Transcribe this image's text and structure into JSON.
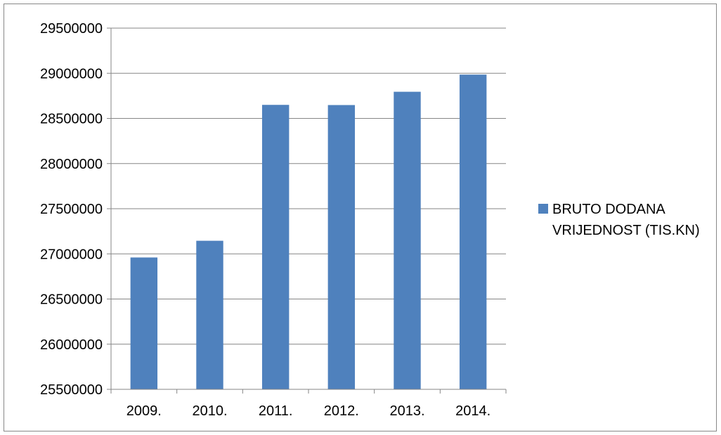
{
  "chart_data": {
    "type": "bar",
    "categories": [
      "2009.",
      "2010.",
      "2011.",
      "2012.",
      "2013.",
      "2014."
    ],
    "series": [
      {
        "name": "BRUTO DODANA VRIJEDNOST (TIS.KN)",
        "values": [
          26960000,
          27145000,
          28650000,
          28648000,
          28795000,
          28985000
        ],
        "color": "#4f81bd"
      }
    ],
    "ylim": [
      25500000,
      29500000
    ],
    "y_ticks": [
      "25500000",
      "26000000",
      "26500000",
      "27000000",
      "27500000",
      "28000000",
      "28500000",
      "29000000",
      "29500000"
    ],
    "grid": true,
    "legend_position": "right",
    "legend_lines": [
      "BRUTO DODANA",
      "VRIJEDNOST (TIS.KN)"
    ],
    "title": "",
    "xlabel": "",
    "ylabel": ""
  }
}
